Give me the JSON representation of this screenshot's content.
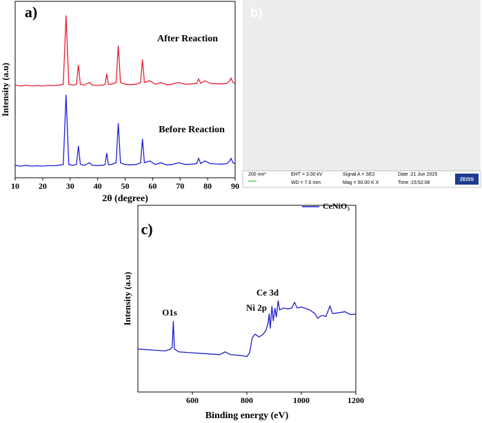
{
  "chart_data": [
    {
      "type": "line",
      "panel_label": "a)",
      "xlabel": "2θ (degree)",
      "ylabel": "Intensity (a.u)",
      "x": [
        10,
        12,
        14,
        16,
        18,
        20,
        22,
        24,
        26,
        27.5,
        28.5,
        29.5,
        31,
        32.3,
        33,
        33.7,
        35,
        37,
        38,
        40,
        42,
        42.7,
        43.3,
        43.9,
        45,
        46.7,
        47.5,
        48.3,
        50,
        52,
        54,
        55.6,
        56.3,
        57,
        59,
        61,
        63,
        65,
        67,
        69.5,
        72,
        74,
        76,
        76.7,
        77.5,
        79,
        81,
        83,
        85,
        87,
        88,
        88.5,
        89.2,
        90
      ],
      "series": [
        {
          "name": "After Reaction",
          "color": "#e8192c",
          "values": [
            52.5,
            52,
            52.5,
            52,
            52.3,
            52,
            52.4,
            52.2,
            52.6,
            53,
            92,
            53,
            52.5,
            53,
            64,
            53,
            52.5,
            54,
            52.6,
            52.4,
            52.6,
            53,
            59,
            53,
            53,
            54,
            75,
            54,
            53,
            52.8,
            53,
            54,
            67,
            54,
            55,
            53,
            54,
            52.8,
            53,
            54,
            53,
            53.2,
            53.5,
            56,
            53.5,
            55,
            53.5,
            53.3,
            53.2,
            53.5,
            55,
            56.5,
            54,
            53.5
          ]
        },
        {
          "name": "Before Reaction",
          "color": "#1a1adf",
          "values": [
            7,
            6.6,
            7,
            6.6,
            6.8,
            6.6,
            6.9,
            6.8,
            7.1,
            7.5,
            47,
            7.5,
            7,
            7.6,
            18,
            7.6,
            7,
            8.5,
            7.1,
            6.9,
            7.1,
            7.5,
            14,
            7.5,
            7.5,
            8.5,
            31,
            8.5,
            7.5,
            7.3,
            7.5,
            8.5,
            22,
            8.5,
            9.5,
            7.5,
            8.5,
            7.3,
            7.5,
            8.5,
            7.5,
            7.7,
            8,
            11,
            8,
            9.5,
            8,
            7.8,
            7.7,
            8,
            9.5,
            11,
            8.5,
            8
          ]
        }
      ],
      "xlim": [
        10,
        90
      ],
      "xticks": [
        10,
        20,
        30,
        40,
        50,
        60,
        70,
        80,
        90
      ],
      "ylim": [
        0,
        100
      ]
    },
    {
      "type": "line",
      "panel_label": "c)",
      "xlabel": "Binding energy (eV)",
      "ylabel": "Intensity (a.u)",
      "x": [
        400,
        450,
        500,
        520,
        526,
        530,
        534,
        550,
        600,
        650,
        700,
        720,
        740,
        780,
        800,
        810,
        820,
        830,
        845,
        860,
        870,
        878,
        882,
        886,
        892,
        897,
        903,
        908,
        915,
        920,
        935,
        950,
        965,
        975,
        985,
        1000,
        1030,
        1050,
        1060,
        1075,
        1090,
        1105,
        1115,
        1140,
        1160,
        1180,
        1200
      ],
      "series": [
        {
          "name": "CeNiO₃",
          "color": "#1a1ac8",
          "values": [
            23,
            22.5,
            22,
            23,
            24,
            38,
            23,
            21.5,
            21,
            20.5,
            20,
            21.5,
            20,
            19.5,
            19,
            21,
            29,
            31,
            29.5,
            31,
            33,
            37,
            42,
            34,
            46,
            38,
            45,
            40,
            49,
            44,
            45,
            44.5,
            45,
            48,
            45,
            45.5,
            44,
            42,
            39.5,
            41,
            40.5,
            46,
            42,
            42.5,
            43,
            41.5,
            41.7
          ]
        }
      ],
      "annotations": [
        "O1s",
        "Ni 2p",
        "Ce 3d"
      ],
      "legend": "upper right",
      "xlim": [
        400,
        1200
      ],
      "xticks": [
        600,
        800,
        1000,
        1200
      ],
      "ylim": [
        0,
        100
      ]
    }
  ],
  "image": {
    "panel_label": "b)",
    "scale_bar": "200 nm*",
    "info": [
      "EHT = 3.00 kV",
      "WD = 7.0 mm",
      "Signal A = SE2",
      "Mag =  50.00 K X",
      "Date :21 Jun 2025",
      "Time :15:52:08"
    ],
    "logo": "ZEISS"
  }
}
